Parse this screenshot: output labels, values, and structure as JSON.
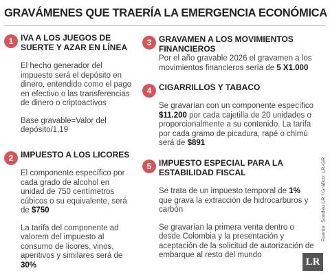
{
  "title": "GRAVÁMENES QUE TRAERÍA LA EMERGENCIA ECONÓMICA",
  "source": "Fuente: Sondeo LR / Gráfico: LR-GR",
  "logo": "LR",
  "items": [
    {
      "number": "1",
      "heading": "IVA A LOS JUEGOS DE SUERTE Y AZAR EN LÍNEA",
      "paragraphs": [
        [
          {
            "text": "El hecho generador del impuesto será el depósito en dinero, entendido como el pago en efectivo o las transferencias de dinero o criptoactivos"
          }
        ],
        [
          {
            "text": "Base gravable=Valor del depósito/1,19"
          }
        ]
      ]
    },
    {
      "number": "2",
      "heading": "IMPUESTO A LOS LICORES",
      "paragraphs": [
        [
          {
            "text": "El componente específico por cada grado de alcohol en unidad de 750 centímetros cúbicos o su equivalente, será de "
          },
          {
            "text": "$750",
            "bold": true
          }
        ],
        [
          {
            "text": "La tarifa del componente ad valorem del impuesto al consumo de licores, vinos, aperitivos y similares será de "
          },
          {
            "text": "30%",
            "bold": true
          }
        ]
      ]
    },
    {
      "number": "3",
      "heading": "GRAVAMEN A LOS MOVIMIENTOS FINANCIEROS",
      "paragraphs": [
        [
          {
            "text": "Por el año gravable 2026 el gravamen a los movimientos financieros sería de "
          },
          {
            "text": "5 X1.000",
            "bold": true
          }
        ]
      ]
    },
    {
      "number": "4",
      "heading": "CIGARRILLOS Y TABACO",
      "paragraphs": [
        [
          {
            "text": "Se gravarían con un componente específico "
          },
          {
            "text": "$11.200",
            "bold": true
          },
          {
            "text": " por cada cajetilla de 20 unidades o proporcionalmente a su contenido. La tarifa por cada gramo de picadura, rapé o chimú será de "
          },
          {
            "text": "$891",
            "bold": true
          }
        ]
      ]
    },
    {
      "number": "5",
      "heading": "IMPUESTO ESPECIAL PARA LA ESTABILIDAD FISCAL",
      "paragraphs": [
        [
          {
            "text": "Se trata de un impuesto temporal de "
          },
          {
            "text": "1%",
            "bold": true
          },
          {
            "text": " que grava la extracción de hidrocarburos y carbón"
          }
        ],
        [
          {
            "text": "Se gravarían la primera venta dentro o desde Colombia y la presentación y aceptación de la solicitud de autorización de embarque al resto del mundo"
          }
        ]
      ]
    }
  ]
}
